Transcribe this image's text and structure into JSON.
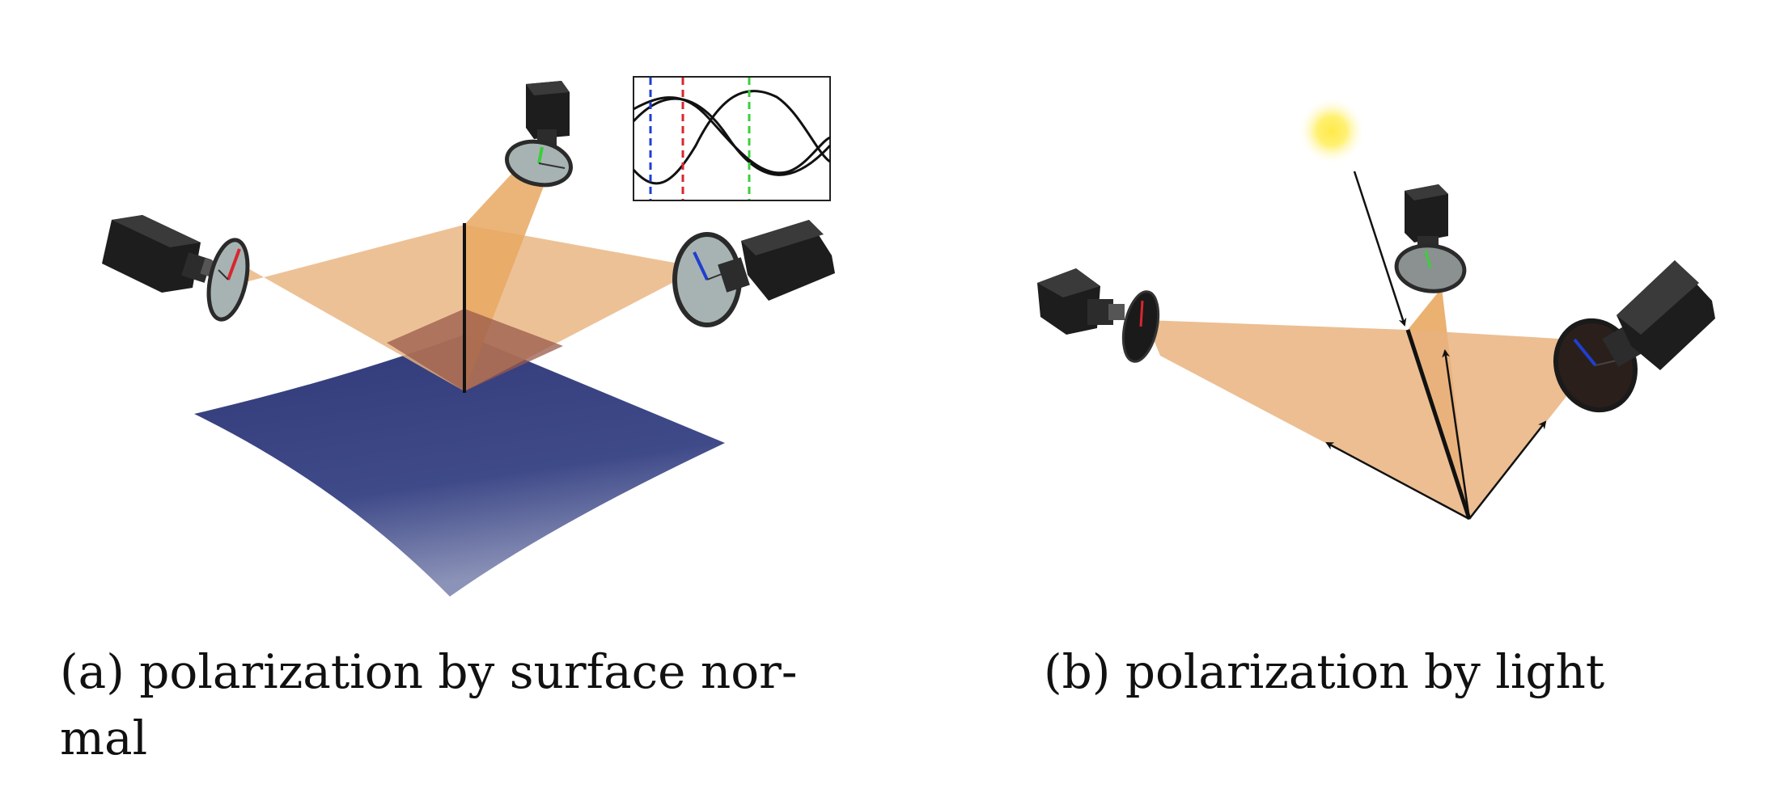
{
  "captions": {
    "a": "(a) polarization by surface nor-\nmal",
    "b": "(b) polarization by light"
  },
  "colors": {
    "surface": "#3d4784",
    "light_cone": "#e9b37f",
    "camera_body": "#1d1d1d",
    "polarizer_disc": "#a7b3b2",
    "sun": "#ffe33a",
    "inset_line_blue": "#1f3fd0",
    "inset_line_red": "#d8262e",
    "inset_line_green": "#3bcf3b"
  },
  "icons": {
    "camera": "camera-icon",
    "polarizer": "polarizer-filter-icon",
    "light_source": "sun-icon"
  }
}
